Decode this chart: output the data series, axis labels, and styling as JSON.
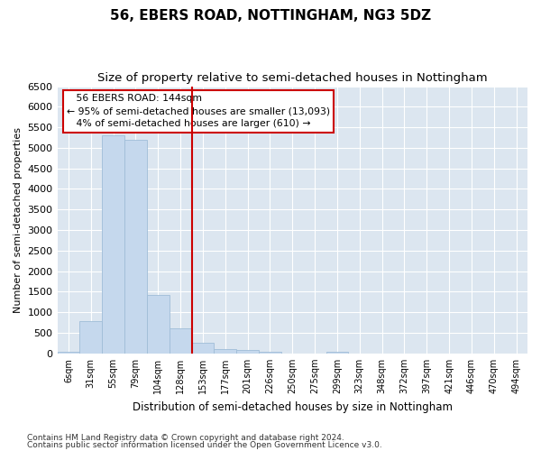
{
  "title": "56, EBERS ROAD, NOTTINGHAM, NG3 5DZ",
  "subtitle": "Size of property relative to semi-detached houses in Nottingham",
  "xlabel": "Distribution of semi-detached houses by size in Nottingham",
  "ylabel": "Number of semi-detached properties",
  "categories": [
    "6sqm",
    "31sqm",
    "55sqm",
    "79sqm",
    "104sqm",
    "128sqm",
    "153sqm",
    "177sqm",
    "201sqm",
    "226sqm",
    "250sqm",
    "275sqm",
    "299sqm",
    "323sqm",
    "348sqm",
    "372sqm",
    "397sqm",
    "421sqm",
    "446sqm",
    "470sqm",
    "494sqm"
  ],
  "values": [
    50,
    780,
    5300,
    5200,
    1430,
    620,
    260,
    110,
    80,
    50,
    0,
    0,
    50,
    0,
    0,
    0,
    0,
    0,
    0,
    0,
    0
  ],
  "bar_color": "#c5d8ed",
  "bar_edge_color": "#a0bdd8",
  "property_line_index": 6,
  "property_label": "56 EBERS ROAD: 144sqm",
  "annotation_smaller": "← 95% of semi-detached houses are smaller (13,093)",
  "annotation_larger": "4% of semi-detached houses are larger (610) →",
  "line_color": "#cc0000",
  "box_edge_color": "#cc0000",
  "ylim": [
    0,
    6500
  ],
  "yticks": [
    0,
    500,
    1000,
    1500,
    2000,
    2500,
    3000,
    3500,
    4000,
    4500,
    5000,
    5500,
    6000,
    6500
  ],
  "fig_bg_color": "#ffffff",
  "plot_bg_color": "#dce6f0",
  "grid_color": "#ffffff",
  "footer_line1": "Contains HM Land Registry data © Crown copyright and database right 2024.",
  "footer_line2": "Contains public sector information licensed under the Open Government Licence v3.0.",
  "title_fontsize": 11,
  "subtitle_fontsize": 9.5
}
